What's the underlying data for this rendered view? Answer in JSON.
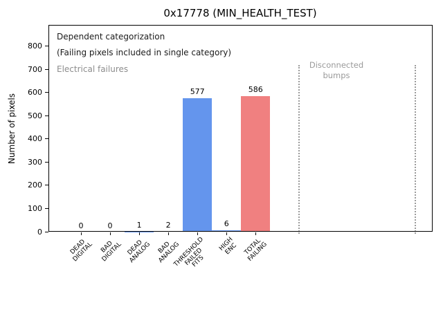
{
  "window": {
    "background": "#ffffff"
  },
  "chart_data": {
    "type": "bar",
    "title": "0x17778 (MIN_HEALTH_TEST)",
    "xlabel": "",
    "ylabel": "Number of pixels",
    "categories": [
      "DEAD DIGITAL",
      "BAD DIGITAL",
      "DEAD ANALOG",
      "BAD ANALOG",
      "THRESHOLD FAILED FITS",
      "HIGH ENC",
      "TOTAL FAILING"
    ],
    "category_label_lines": [
      [
        "DEAD",
        "DIGITAL"
      ],
      [
        "BAD",
        "DIGITAL"
      ],
      [
        "DEAD",
        "ANALOG"
      ],
      [
        "BAD",
        "ANALOG"
      ],
      [
        "THRESHOLD",
        "FAILED",
        "FITS"
      ],
      [
        "HIGH",
        "ENC"
      ],
      [
        "TOTAL",
        "FAILING"
      ]
    ],
    "values": [
      0,
      0,
      1,
      2,
      577,
      6,
      586
    ],
    "bar_value_labels": [
      "0",
      "0",
      "1",
      "2",
      "577",
      "6",
      "586"
    ],
    "bar_colors": [
      "#6495ed",
      "#6495ed",
      "#6495ed",
      "#6495ed",
      "#6495ed",
      "#6495ed",
      "#f08080"
    ],
    "ylim": [
      0,
      892
    ],
    "yticks": [
      0,
      100,
      200,
      300,
      400,
      500,
      600,
      700,
      800
    ],
    "grid": false,
    "legend_position": "none",
    "annotations": [
      {
        "id": "dependent-line1",
        "text": "Dependent categorization",
        "color": "#1a1a1a"
      },
      {
        "id": "dependent-line2",
        "text": "(Failing pixels included in single category)",
        "color": "#1a1a1a"
      },
      {
        "id": "electrical",
        "text": "Electrical failures",
        "color": "#8d8d8d"
      },
      {
        "id": "disconnected-line1",
        "text": "Disconnected",
        "color": "#9a9a9a"
      },
      {
        "id": "disconnected-line2",
        "text": "bumps",
        "color": "#9a9a9a"
      }
    ],
    "vlines": [
      {
        "style": "dotted",
        "color": "#9b9b9b",
        "y_span": [
          0,
          720
        ]
      },
      {
        "style": "dotted",
        "color": "#9b9b9b",
        "y_span": [
          0,
          720
        ]
      }
    ]
  }
}
